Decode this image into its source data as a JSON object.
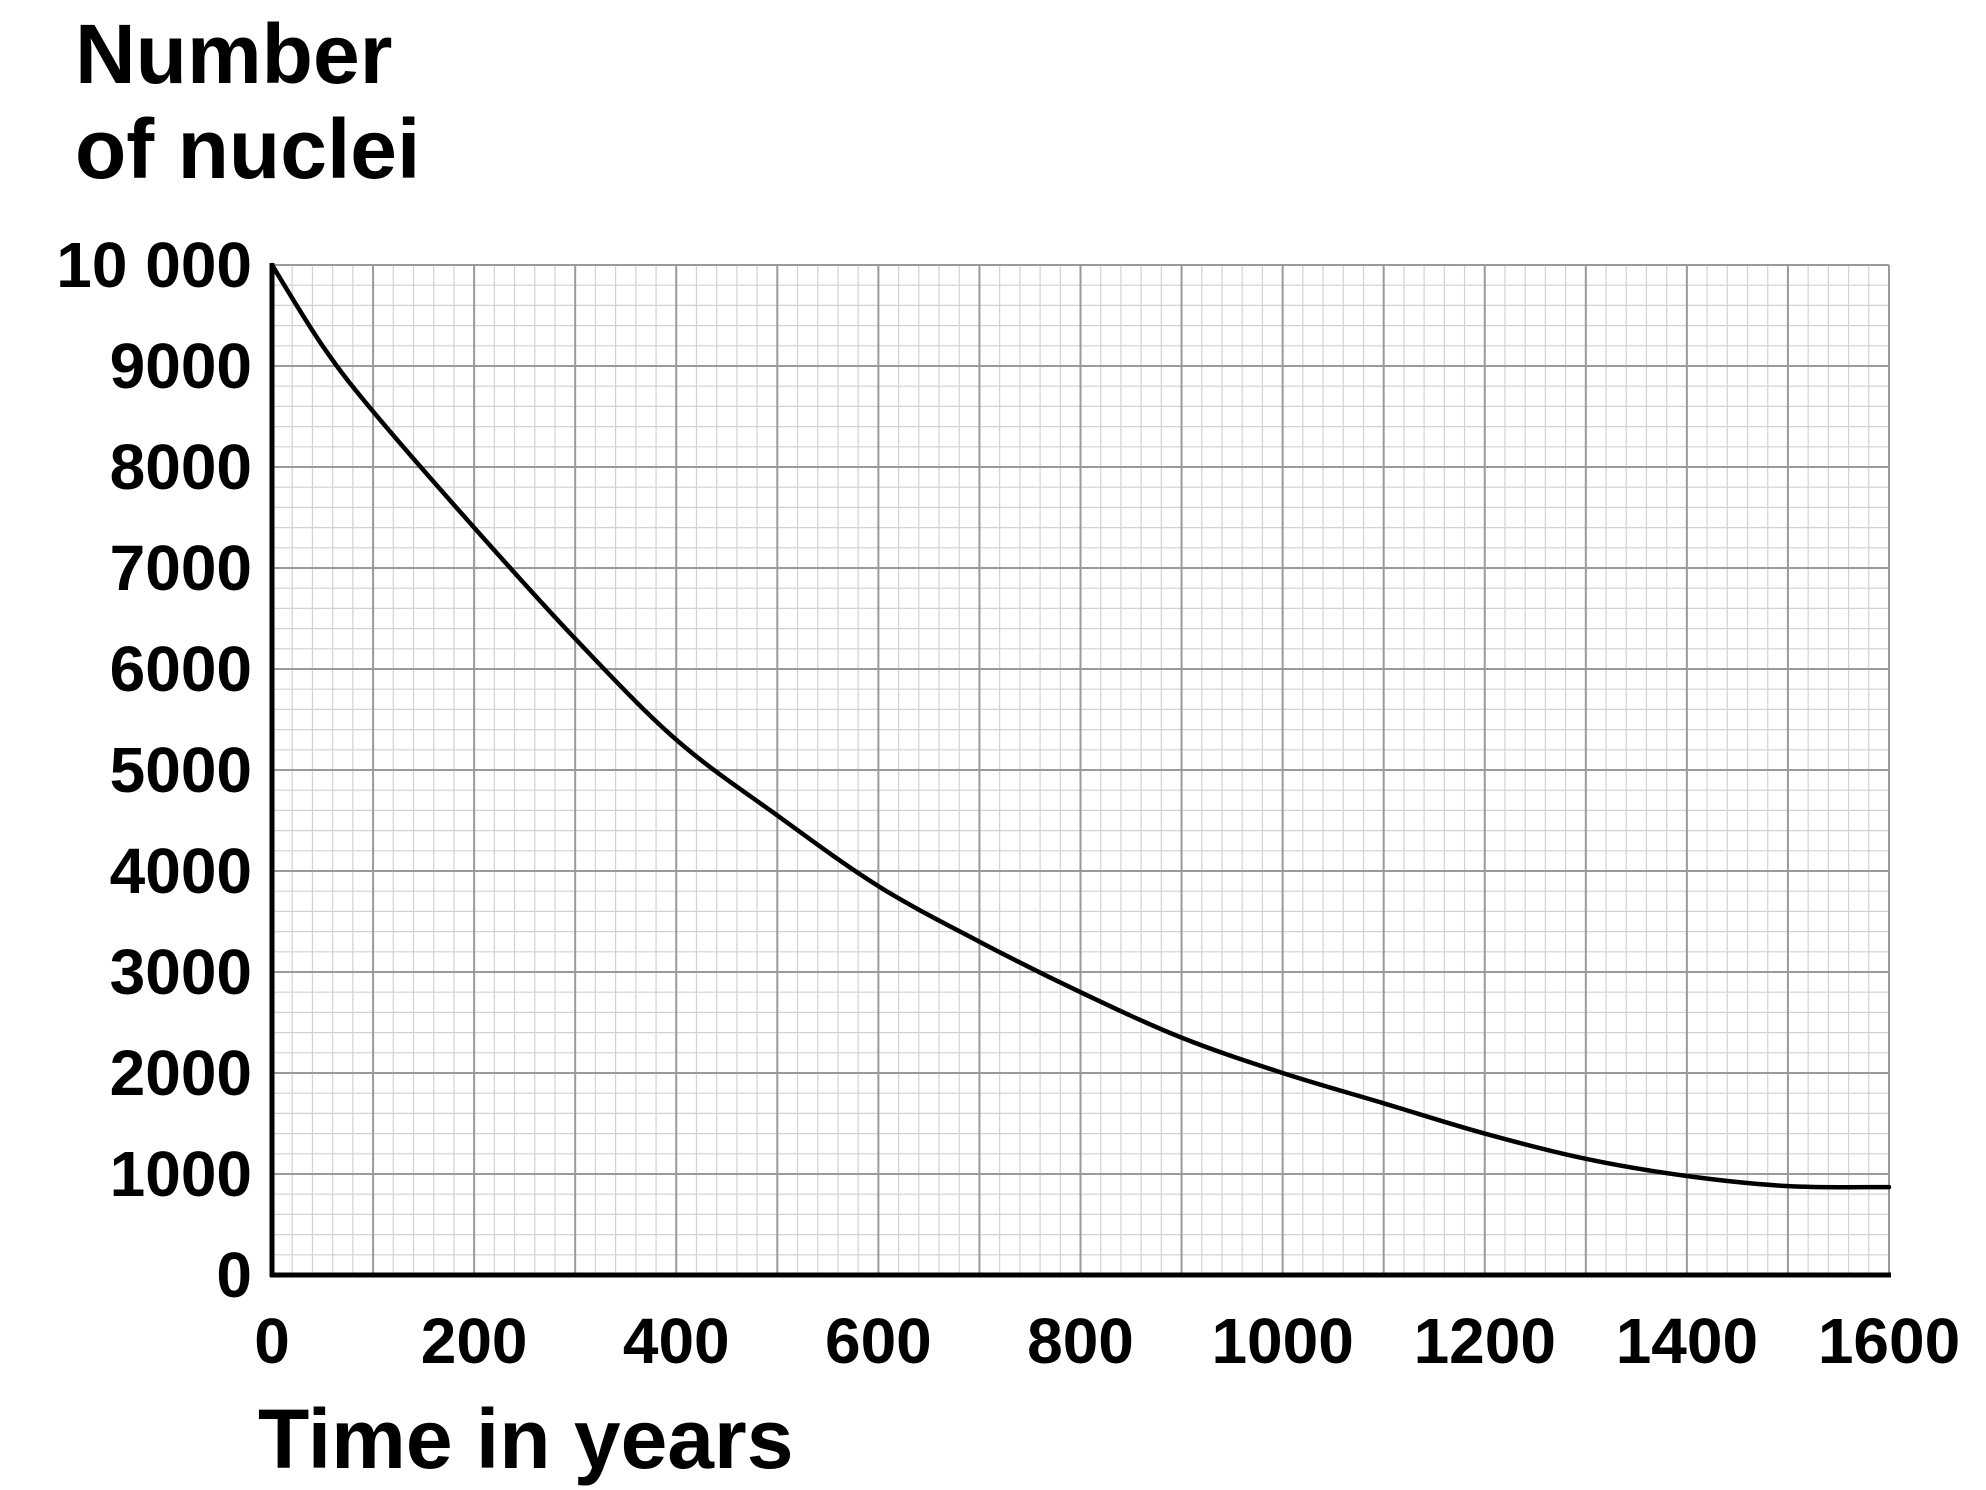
{
  "chart_data": {
    "type": "line",
    "ylabel_lines": [
      "Number",
      "of nuclei"
    ],
    "xlabel": "Time in years",
    "xlim": [
      0,
      1600
    ],
    "ylim": [
      0,
      10000
    ],
    "x_ticks": [
      0,
      200,
      400,
      600,
      800,
      1000,
      1200,
      1400,
      1600
    ],
    "x_tick_labels": [
      "0",
      "200",
      "400",
      "600",
      "800",
      "1000",
      "1200",
      "1400",
      "1600"
    ],
    "y_ticks": [
      0,
      1000,
      2000,
      3000,
      4000,
      5000,
      6000,
      7000,
      8000,
      9000,
      10000
    ],
    "y_tick_labels": [
      "0",
      "1000",
      "2000",
      "3000",
      "4000",
      "5000",
      "6000",
      "7000",
      "8000",
      "9000",
      "10 000"
    ],
    "major_grid_x_step": 100,
    "major_grid_y_step": 1000,
    "minor_grid_x_step": 20,
    "minor_grid_y_step": 200,
    "grid": true,
    "series": [
      {
        "x": [
          0,
          50,
          100,
          200,
          300,
          400,
          500,
          600,
          700,
          800,
          900,
          1000,
          1100,
          1200,
          1300,
          1400,
          1500,
          1600
        ],
        "y": [
          10000,
          9200,
          8550,
          7400,
          6300,
          5300,
          4550,
          3850,
          3300,
          2800,
          2350,
          2000,
          1700,
          1400,
          1150,
          980,
          880,
          870
        ]
      }
    ]
  }
}
